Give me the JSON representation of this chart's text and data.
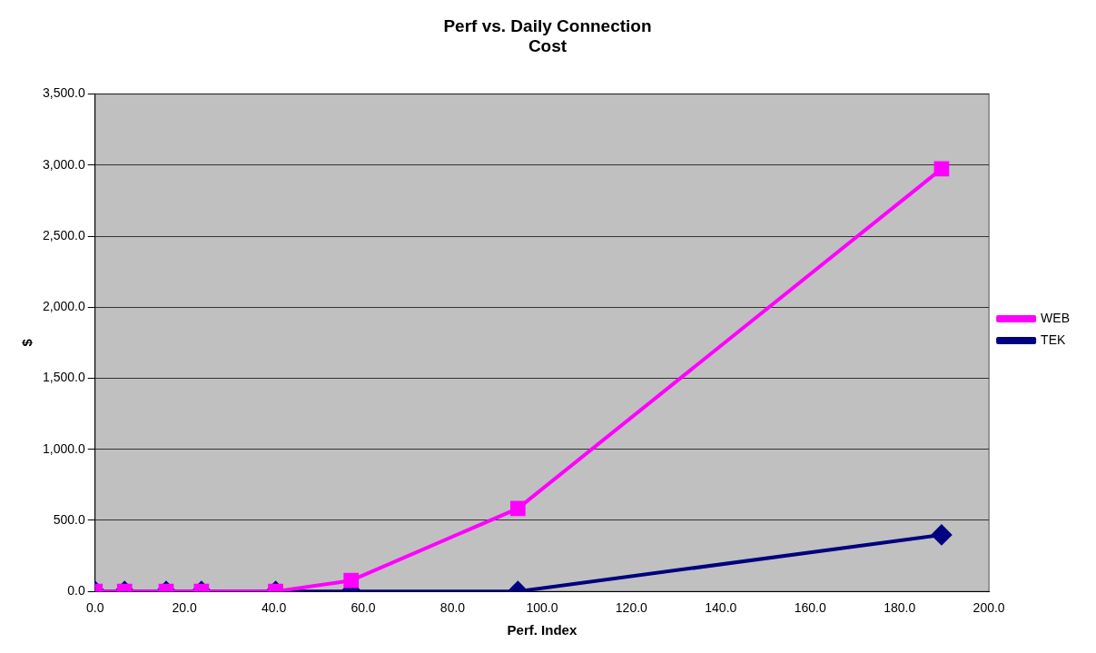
{
  "chart_data": {
    "type": "line",
    "title": "Perf vs. Daily Connection\nCost",
    "xlabel": "Perf. Index",
    "ylabel": "$",
    "x": [
      0,
      6.6,
      15.9,
      23.8,
      40.4,
      57.3,
      94.6,
      189.4
    ],
    "series": [
      {
        "name": "TEK",
        "color": "#000080",
        "marker": "diamond",
        "values": [
          0,
          0,
          0,
          0,
          0,
          0,
          0,
          398
        ]
      },
      {
        "name": "WEB",
        "color": "#ff00ff",
        "marker": "square",
        "values": [
          0,
          0,
          0,
          0,
          0,
          77,
          584,
          2974
        ]
      }
    ],
    "xlim": [
      0,
      200
    ],
    "xticks": [
      {
        "value": 0,
        "label": "0.0"
      },
      {
        "value": 20,
        "label": "20.0"
      },
      {
        "value": 40,
        "label": "40.0"
      },
      {
        "value": 60,
        "label": "60.0"
      },
      {
        "value": 80,
        "label": "80.0"
      },
      {
        "value": 100,
        "label": "100.0"
      },
      {
        "value": 120,
        "label": "120.0"
      },
      {
        "value": 140,
        "label": "140.0"
      },
      {
        "value": 160,
        "label": "160.0"
      },
      {
        "value": 180,
        "label": "180.0"
      },
      {
        "value": 200,
        "label": "200.0"
      }
    ],
    "ylim": [
      0,
      3500
    ],
    "yticks": [
      {
        "value": 0,
        "label": "0.0"
      },
      {
        "value": 500,
        "label": "500.0"
      },
      {
        "value": 1000,
        "label": "1,000.0"
      },
      {
        "value": 1500,
        "label": "1,500.0"
      },
      {
        "value": 2000,
        "label": "2,000.0"
      },
      {
        "value": 2500,
        "label": "2,500.0"
      },
      {
        "value": 3000,
        "label": "3,000.0"
      },
      {
        "value": 3500,
        "label": "3,500.0"
      }
    ],
    "grid": "y",
    "legend": "right",
    "line_style": "solid"
  }
}
